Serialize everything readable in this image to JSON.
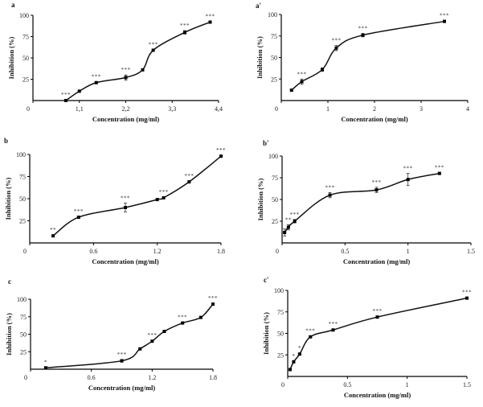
{
  "chart_data": [
    {
      "type": "line",
      "panel_label": "a",
      "xlabel": "Concentration (mg/ml)",
      "ylabel": "Inhibition (%)",
      "xlim": [
        0,
        4.4
      ],
      "ylim": [
        0,
        100
      ],
      "xticks": [
        "0",
        "1,1",
        "2,2",
        "3,3",
        "4,4"
      ],
      "xtick_values": [
        0,
        1.1,
        2.2,
        3.3,
        4.4
      ],
      "yticks": [
        "25",
        "50",
        "75",
        "100"
      ],
      "ytick_values": [
        25,
        50,
        75,
        100
      ],
      "x": [
        0.78,
        1.1,
        1.5,
        2.2,
        2.6,
        2.85,
        3.6,
        4.2
      ],
      "y": [
        0,
        11,
        21,
        27,
        36,
        59,
        80,
        92
      ],
      "err": [
        0,
        0,
        1,
        3,
        0,
        0,
        2,
        0
      ],
      "significance": [
        "***",
        "",
        "***",
        "***",
        "",
        "***",
        "***",
        "***"
      ]
    },
    {
      "type": "line",
      "panel_label": "a'",
      "xlabel": "Concentration (mg/ml)",
      "ylabel": "Inhibition (%)",
      "xlim": [
        0,
        4
      ],
      "ylim": [
        0,
        100
      ],
      "xticks": [
        "0",
        "1",
        "2",
        "3",
        "4"
      ],
      "xtick_values": [
        0,
        1,
        2,
        3,
        4
      ],
      "yticks": [
        "25",
        "50",
        "75",
        "100"
      ],
      "ytick_values": [
        25,
        50,
        75,
        100
      ],
      "x": [
        0.22,
        0.44,
        0.88,
        1.18,
        1.75,
        3.5
      ],
      "y": [
        12,
        22,
        36,
        61,
        76,
        92
      ],
      "err": [
        1,
        3,
        2,
        3,
        2,
        1
      ],
      "significance": [
        "",
        "***",
        "",
        "***",
        "***",
        "***"
      ]
    },
    {
      "type": "line",
      "panel_label": "b",
      "xlabel": "Concentration (mg/ml)",
      "ylabel": "Inhibition (%)",
      "xlim": [
        0,
        1.8
      ],
      "ylim": [
        0,
        100
      ],
      "xticks": [
        "0",
        "0.6",
        "1.2",
        "1.8"
      ],
      "xtick_values": [
        0,
        0.6,
        1.2,
        1.8
      ],
      "yticks": [
        "25",
        "50",
        "75",
        "100"
      ],
      "ytick_values": [
        25,
        50,
        75,
        100
      ],
      "x": [
        0.22,
        0.46,
        0.9,
        1.2,
        1.26,
        1.5,
        1.8
      ],
      "y": [
        8,
        29,
        40,
        49,
        51,
        69,
        98
      ],
      "err": [
        0,
        0,
        5,
        0,
        1,
        0,
        0
      ],
      "significance": [
        "**",
        "***",
        "***",
        "",
        "***",
        "***",
        "***"
      ]
    },
    {
      "type": "line",
      "panel_label": "b'",
      "xlabel": "Concentration (mg/ml)",
      "ylabel": "Inhibition (%)",
      "xlim": [
        0,
        1.5
      ],
      "ylim": [
        0,
        100
      ],
      "xticks": [
        "0",
        "0.5",
        "1",
        "1.5"
      ],
      "xtick_values": [
        0,
        0.5,
        1,
        1.5
      ],
      "yticks": [
        "25",
        "50",
        "75",
        "100"
      ],
      "ytick_values": [
        25,
        50,
        75,
        100
      ],
      "x": [
        0.02,
        0.05,
        0.1,
        0.38,
        0.75,
        1.0,
        1.25
      ],
      "y": [
        12,
        18,
        25,
        55,
        61,
        73,
        80
      ],
      "err": [
        4,
        3,
        2,
        3,
        3,
        7,
        1
      ],
      "significance": [
        "",
        "**",
        "***",
        "***",
        "***",
        "***",
        "***"
      ]
    },
    {
      "type": "line",
      "panel_label": "c",
      "xlabel": "Concentration (mg/ml)",
      "ylabel": "Inhibition (%)",
      "xlim": [
        0,
        1.8
      ],
      "ylim": [
        0,
        100
      ],
      "xticks": [
        "0",
        "0.6",
        "1.2",
        "1.8"
      ],
      "xtick_values": [
        0,
        0.6,
        1.2,
        1.8
      ],
      "yticks": [
        "25",
        "50",
        "75",
        "100"
      ],
      "ytick_values": [
        25,
        50,
        75,
        100
      ],
      "x": [
        0.15,
        0.9,
        1.08,
        1.2,
        1.32,
        1.5,
        1.68,
        1.8
      ],
      "y": [
        2,
        12,
        29,
        40,
        54,
        66,
        74,
        93
      ],
      "err": [
        0,
        2,
        0,
        0,
        0,
        0,
        0,
        0
      ],
      "significance": [
        "*",
        "***",
        "",
        "***",
        "",
        "***",
        "",
        "***"
      ]
    },
    {
      "type": "line",
      "panel_label": "c'",
      "xlabel": "Concentration (mg/ml)",
      "ylabel": "Inhibition (%)",
      "xlim": [
        0,
        1.5
      ],
      "ylim": [
        0,
        100
      ],
      "xticks": [
        "0",
        "0.5",
        "1",
        "1.5"
      ],
      "xtick_values": [
        0,
        0.5,
        1,
        1.5
      ],
      "yticks": [
        "25",
        "50",
        "75",
        "100"
      ],
      "ytick_values": [
        25,
        50,
        75,
        100
      ],
      "x": [
        0.02,
        0.05,
        0.1,
        0.19,
        0.38,
        0.75,
        1.5
      ],
      "y": [
        8,
        17,
        26,
        46,
        54,
        69,
        91
      ],
      "err": [
        0,
        0,
        1,
        1,
        0,
        0,
        0
      ],
      "significance": [
        "",
        "*",
        "*",
        "***",
        "***",
        "***",
        "***"
      ]
    }
  ]
}
